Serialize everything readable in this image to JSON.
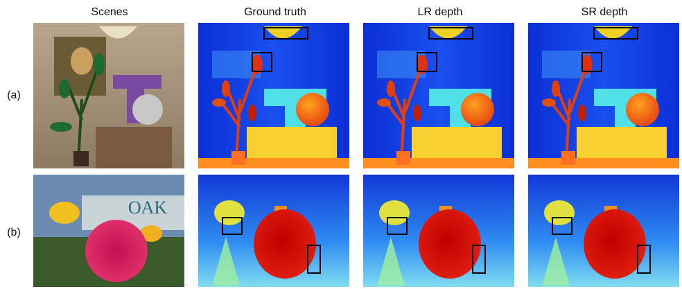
{
  "columns": [
    "Scenes",
    "Ground truth",
    "LR depth",
    "SR depth"
  ],
  "rows": [
    "(a)",
    "(b)"
  ],
  "scene_text": "OAK"
}
